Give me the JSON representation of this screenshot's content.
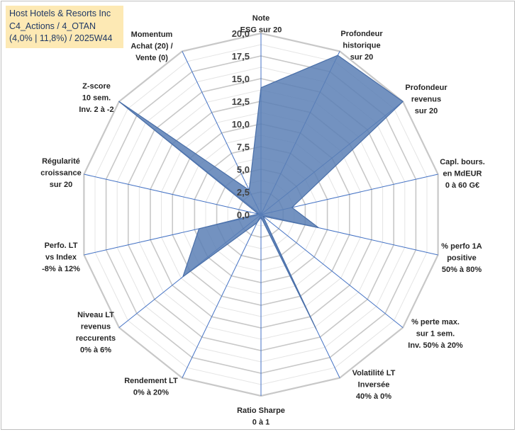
{
  "chart_data": {
    "type": "radar",
    "title_lines": [
      "Host Hotels & Resorts Inc",
      "C4_Actions / 4_OTAN",
      "(4,0% | 11,8%) / 2025W44"
    ],
    "rmin": 0,
    "rmax": 20,
    "ticks": [
      "0,0",
      "2,5",
      "5,0",
      "7,5",
      "10,0",
      "12,5",
      "15,0",
      "17,5",
      "20,0"
    ],
    "axes": [
      {
        "label_lines": [
          "Note",
          "ESG sur 20"
        ],
        "value": 14.0
      },
      {
        "label_lines": [
          "Profondeur",
          "historique",
          "sur 20"
        ],
        "value": 19.5
      },
      {
        "label_lines": [
          "Profondeur",
          "revenus",
          "sur 20"
        ],
        "value": 20.0
      },
      {
        "label_lines": [
          "Capl. bours.",
          "en MdEUR",
          "0 à 60 G€"
        ],
        "value": 3.5
      },
      {
        "label_lines": [
          "% perfo 1A",
          "positive",
          "50% à 80%"
        ],
        "value": 6.5
      },
      {
        "label_lines": [
          "% perte max.",
          "sur 1 sem.",
          "Inv. 50% à 20%"
        ],
        "value": 0.3
      },
      {
        "label_lines": [
          "Volatilité LT",
          "Inversée",
          "40% à 0%"
        ],
        "value": 14.0
      },
      {
        "label_lines": [
          "Ratio Sharpe",
          "0 à 1"
        ],
        "value": 0.3
      },
      {
        "label_lines": [
          "Rendement LT",
          "0% à 20%"
        ],
        "value": 1.0
      },
      {
        "label_lines": [
          "Niveau LT",
          "revenus",
          "reccurents",
          "0% à 6%"
        ],
        "value": 11.0
      },
      {
        "label_lines": [
          "Perfo. LT",
          "vs Index",
          "-8% à 12%"
        ],
        "value": 7.0
      },
      {
        "label_lines": [
          "Régularité",
          "croissance",
          "sur 20"
        ],
        "value": 0.3
      },
      {
        "label_lines": [
          "Z-score",
          "10 sem.",
          "Inv. 2 à -2"
        ],
        "value": 20.0
      },
      {
        "label_lines": [
          "Momentum",
          "Achat (20) /",
          "Vente (0)"
        ],
        "value": 3.0
      }
    ],
    "colors": {
      "fill": "#5b7fb5",
      "fill_opacity": "0.85",
      "stroke": "#4a6fa8",
      "grid": "#d9d9d9",
      "spoke": "#4472c4",
      "border": "#bfbfbf"
    }
  }
}
